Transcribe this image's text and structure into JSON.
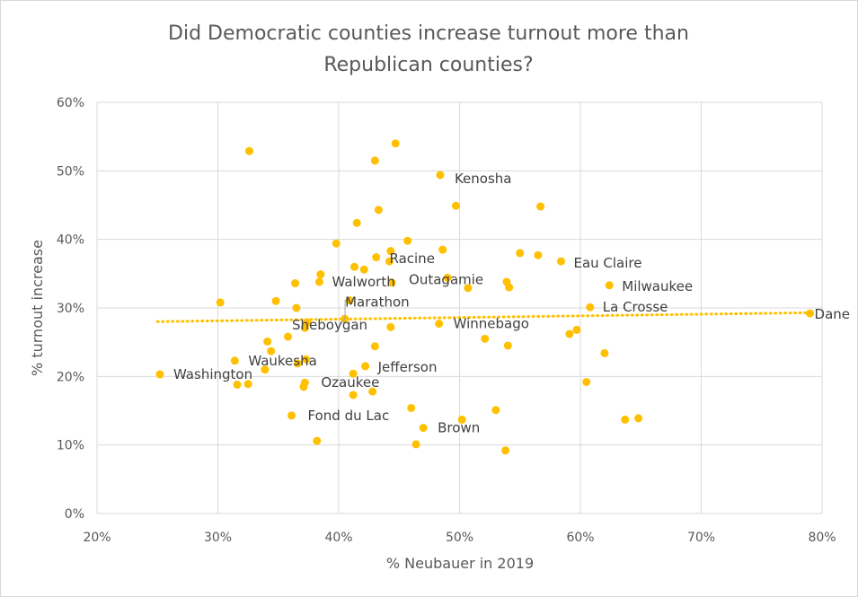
{
  "chart_data": {
    "type": "scatter",
    "title_lines": [
      "Did Democratic counties increase turnout more than",
      "Republican counties?"
    ],
    "xlabel": "% Neubauer in 2019",
    "ylabel": "% turnout increase",
    "xlim": [
      0.2,
      0.8
    ],
    "ylim": [
      0,
      0.6
    ],
    "x_ticks": [
      0.2,
      0.3,
      0.4,
      0.5,
      0.6,
      0.7,
      0.8
    ],
    "x_tick_labels": [
      "20%",
      "30%",
      "40%",
      "50%",
      "60%",
      "70%",
      "80%"
    ],
    "y_ticks": [
      0,
      0.1,
      0.2,
      0.3,
      0.4,
      0.5,
      0.6
    ],
    "y_tick_labels": [
      "0%",
      "10%",
      "20%",
      "30%",
      "40%",
      "50%",
      "60%"
    ],
    "grid": true,
    "marker_color": "#FFC000",
    "trendline": {
      "type": "linear",
      "style": "dotted",
      "color": "#FFC000",
      "x": [
        0.25,
        0.79
      ],
      "y": [
        0.28,
        0.293
      ]
    },
    "points": [
      {
        "x": 0.252,
        "y": 0.203,
        "label": "Washington"
      },
      {
        "x": 0.302,
        "y": 0.308,
        "label": ""
      },
      {
        "x": 0.314,
        "y": 0.223,
        "label": "Waukesha"
      },
      {
        "x": 0.316,
        "y": 0.188,
        "label": ""
      },
      {
        "x": 0.325,
        "y": 0.189,
        "label": ""
      },
      {
        "x": 0.326,
        "y": 0.529,
        "label": ""
      },
      {
        "x": 0.339,
        "y": 0.21,
        "label": ""
      },
      {
        "x": 0.341,
        "y": 0.251,
        "label": ""
      },
      {
        "x": 0.344,
        "y": 0.237,
        "label": ""
      },
      {
        "x": 0.348,
        "y": 0.31,
        "label": ""
      },
      {
        "x": 0.358,
        "y": 0.258,
        "label": ""
      },
      {
        "x": 0.361,
        "y": 0.143,
        "label": "Fond du Lac"
      },
      {
        "x": 0.364,
        "y": 0.336,
        "label": ""
      },
      {
        "x": 0.365,
        "y": 0.3,
        "label": ""
      },
      {
        "x": 0.366,
        "y": 0.219,
        "label": ""
      },
      {
        "x": 0.371,
        "y": 0.185,
        "label": ""
      },
      {
        "x": 0.372,
        "y": 0.191,
        "label": "Ozaukee"
      },
      {
        "x": 0.372,
        "y": 0.271,
        "label": ""
      },
      {
        "x": 0.373,
        "y": 0.225,
        "label": ""
      },
      {
        "x": 0.374,
        "y": 0.279,
        "label": "Sheboygan"
      },
      {
        "x": 0.382,
        "y": 0.106,
        "label": ""
      },
      {
        "x": 0.384,
        "y": 0.338,
        "label": "Walworth"
      },
      {
        "x": 0.385,
        "y": 0.349,
        "label": ""
      },
      {
        "x": 0.398,
        "y": 0.394,
        "label": ""
      },
      {
        "x": 0.405,
        "y": 0.284,
        "label": ""
      },
      {
        "x": 0.409,
        "y": 0.311,
        "label": "Marathon"
      },
      {
        "x": 0.412,
        "y": 0.173,
        "label": ""
      },
      {
        "x": 0.412,
        "y": 0.204,
        "label": ""
      },
      {
        "x": 0.413,
        "y": 0.36,
        "label": ""
      },
      {
        "x": 0.415,
        "y": 0.424,
        "label": ""
      },
      {
        "x": 0.421,
        "y": 0.356,
        "label": ""
      },
      {
        "x": 0.422,
        "y": 0.215,
        "label": "Jefferson"
      },
      {
        "x": 0.428,
        "y": 0.178,
        "label": ""
      },
      {
        "x": 0.43,
        "y": 0.515,
        "label": ""
      },
      {
        "x": 0.43,
        "y": 0.244,
        "label": ""
      },
      {
        "x": 0.431,
        "y": 0.374,
        "label": ""
      },
      {
        "x": 0.433,
        "y": 0.443,
        "label": ""
      },
      {
        "x": 0.442,
        "y": 0.368,
        "label": "Racine"
      },
      {
        "x": 0.443,
        "y": 0.272,
        "label": ""
      },
      {
        "x": 0.443,
        "y": 0.383,
        "label": ""
      },
      {
        "x": 0.444,
        "y": 0.337,
        "label": ""
      },
      {
        "x": 0.447,
        "y": 0.54,
        "label": ""
      },
      {
        "x": 0.457,
        "y": 0.398,
        "label": ""
      },
      {
        "x": 0.46,
        "y": 0.154,
        "label": ""
      },
      {
        "x": 0.464,
        "y": 0.101,
        "label": ""
      },
      {
        "x": 0.47,
        "y": 0.125,
        "label": "Brown"
      },
      {
        "x": 0.483,
        "y": 0.277,
        "label": "Winnebago"
      },
      {
        "x": 0.484,
        "y": 0.494,
        "label": "Kenosha"
      },
      {
        "x": 0.486,
        "y": 0.385,
        "label": ""
      },
      {
        "x": 0.49,
        "y": 0.344,
        "label": "Outagamie"
      },
      {
        "x": 0.497,
        "y": 0.449,
        "label": ""
      },
      {
        "x": 0.502,
        "y": 0.137,
        "label": ""
      },
      {
        "x": 0.507,
        "y": 0.329,
        "label": ""
      },
      {
        "x": 0.521,
        "y": 0.255,
        "label": ""
      },
      {
        "x": 0.53,
        "y": 0.151,
        "label": ""
      },
      {
        "x": 0.538,
        "y": 0.092,
        "label": ""
      },
      {
        "x": 0.539,
        "y": 0.338,
        "label": ""
      },
      {
        "x": 0.54,
        "y": 0.245,
        "label": ""
      },
      {
        "x": 0.541,
        "y": 0.33,
        "label": ""
      },
      {
        "x": 0.55,
        "y": 0.38,
        "label": ""
      },
      {
        "x": 0.565,
        "y": 0.377,
        "label": ""
      },
      {
        "x": 0.567,
        "y": 0.448,
        "label": ""
      },
      {
        "x": 0.584,
        "y": 0.368,
        "label": "Eau Claire"
      },
      {
        "x": 0.591,
        "y": 0.262,
        "label": ""
      },
      {
        "x": 0.597,
        "y": 0.268,
        "label": ""
      },
      {
        "x": 0.605,
        "y": 0.192,
        "label": ""
      },
      {
        "x": 0.608,
        "y": 0.301,
        "label": "La Crosse"
      },
      {
        "x": 0.62,
        "y": 0.234,
        "label": ""
      },
      {
        "x": 0.624,
        "y": 0.333,
        "label": "Milwaukee"
      },
      {
        "x": 0.637,
        "y": 0.137,
        "label": ""
      },
      {
        "x": 0.648,
        "y": 0.139,
        "label": ""
      },
      {
        "x": 0.79,
        "y": 0.292,
        "label": "Dane"
      }
    ]
  }
}
